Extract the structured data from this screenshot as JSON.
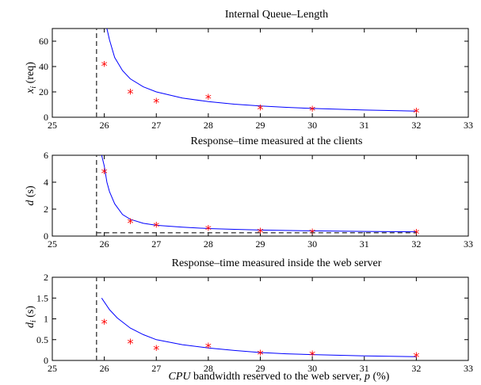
{
  "chart_data": [
    {
      "type": "line",
      "title": "Internal Queue–Length",
      "ylabel_symbol": "x",
      "ylabel_sub": "i",
      "ylabel_unit": " (req)",
      "xlim": [
        25,
        33
      ],
      "ylim": [
        0,
        70
      ],
      "xticks": [
        "25",
        "26",
        "27",
        "28",
        "29",
        "30",
        "31",
        "32",
        "33"
      ],
      "yticks": [
        "0",
        "20",
        "40",
        "60"
      ],
      "ytick_values": [
        0,
        20,
        40,
        60
      ],
      "series": [
        {
          "style": "line",
          "color": "#0000ff",
          "x": [
            26.05,
            26.1,
            26.2,
            26.35,
            26.5,
            26.75,
            27,
            27.5,
            28,
            28.5,
            29,
            29.5,
            30,
            31,
            32
          ],
          "y": [
            70,
            61,
            47.2,
            36.8,
            30.3,
            24.0,
            20.0,
            15.2,
            12.3,
            10.3,
            8.9,
            7.8,
            6.95,
            5.7,
            4.9
          ]
        },
        {
          "style": "markers",
          "color": "#ff0000",
          "x": [
            26,
            26.5,
            27,
            28,
            29,
            30,
            32
          ],
          "y": [
            41,
            19,
            12,
            15,
            6.5,
            5.5,
            4
          ]
        },
        {
          "style": "dashed",
          "color": "#404040",
          "x": [
            25.85,
            25.85
          ],
          "y": [
            0,
            70
          ]
        }
      ]
    },
    {
      "type": "line",
      "title": "Response–time measured at the clients",
      "ylabel_symbol": "d",
      "ylabel_sub": "",
      "ylabel_unit": " (s)",
      "xlim": [
        25,
        33
      ],
      "ylim": [
        0,
        6
      ],
      "xticks": [
        "25",
        "26",
        "27",
        "28",
        "29",
        "30",
        "31",
        "32",
        "33"
      ],
      "yticks": [
        "0",
        "2",
        "4",
        "6"
      ],
      "ytick_values": [
        0,
        2,
        4,
        6
      ],
      "series": [
        {
          "style": "line",
          "color": "#0000ff",
          "x": [
            25.95,
            26.0,
            26.05,
            26.1,
            26.2,
            26.35,
            26.5,
            26.75,
            27,
            27.5,
            28,
            28.5,
            29,
            30,
            31,
            32
          ],
          "y": [
            6,
            5.2,
            4.0,
            3.3,
            2.4,
            1.6,
            1.25,
            0.95,
            0.8,
            0.66,
            0.56,
            0.5,
            0.45,
            0.39,
            0.35,
            0.32
          ]
        },
        {
          "style": "markers",
          "color": "#ff0000",
          "x": [
            26,
            26.5,
            27,
            28,
            29,
            30,
            32
          ],
          "y": [
            4.7,
            1.0,
            0.75,
            0.5,
            0.3,
            0.25,
            0.2
          ]
        },
        {
          "style": "dashed",
          "color": "#404040",
          "x": [
            25.85,
            25.85
          ],
          "y": [
            0,
            6
          ]
        },
        {
          "style": "dashed",
          "color": "#404040",
          "x": [
            25.85,
            32
          ],
          "y": [
            0.25,
            0.25
          ]
        }
      ]
    },
    {
      "type": "line",
      "title": "Response–time measured inside the web server",
      "ylabel_symbol": "d",
      "ylabel_sub": "i",
      "ylabel_unit": " (s)",
      "xlim": [
        25,
        33
      ],
      "ylim": [
        0,
        2
      ],
      "xticks": [
        "25",
        "26",
        "27",
        "28",
        "29",
        "30",
        "31",
        "32",
        "33"
      ],
      "yticks": [
        "0",
        "0.5",
        "1",
        "1.5",
        "2"
      ],
      "ytick_values": [
        0,
        0.5,
        1,
        1.5,
        2
      ],
      "series": [
        {
          "style": "line",
          "color": "#0000ff",
          "x": [
            25.95,
            26.1,
            26.25,
            26.5,
            26.75,
            27,
            27.5,
            28,
            28.5,
            29,
            29.5,
            30,
            31,
            32
          ],
          "y": [
            1.5,
            1.22,
            1.02,
            0.78,
            0.62,
            0.5,
            0.38,
            0.3,
            0.24,
            0.19,
            0.16,
            0.14,
            0.11,
            0.09
          ]
        },
        {
          "style": "markers",
          "color": "#ff0000",
          "x": [
            26,
            26.5,
            27,
            28,
            29,
            30,
            32
          ],
          "y": [
            0.9,
            0.42,
            0.27,
            0.32,
            0.15,
            0.13,
            0.1
          ]
        },
        {
          "style": "dashed",
          "color": "#404040",
          "x": [
            25.85,
            25.85
          ],
          "y": [
            0,
            2
          ]
        }
      ]
    }
  ],
  "xlabel": {
    "cpu": "CPU",
    "middle": " bandwidth reserved to the web server, ",
    "p": "p",
    "unit": " (%)"
  }
}
